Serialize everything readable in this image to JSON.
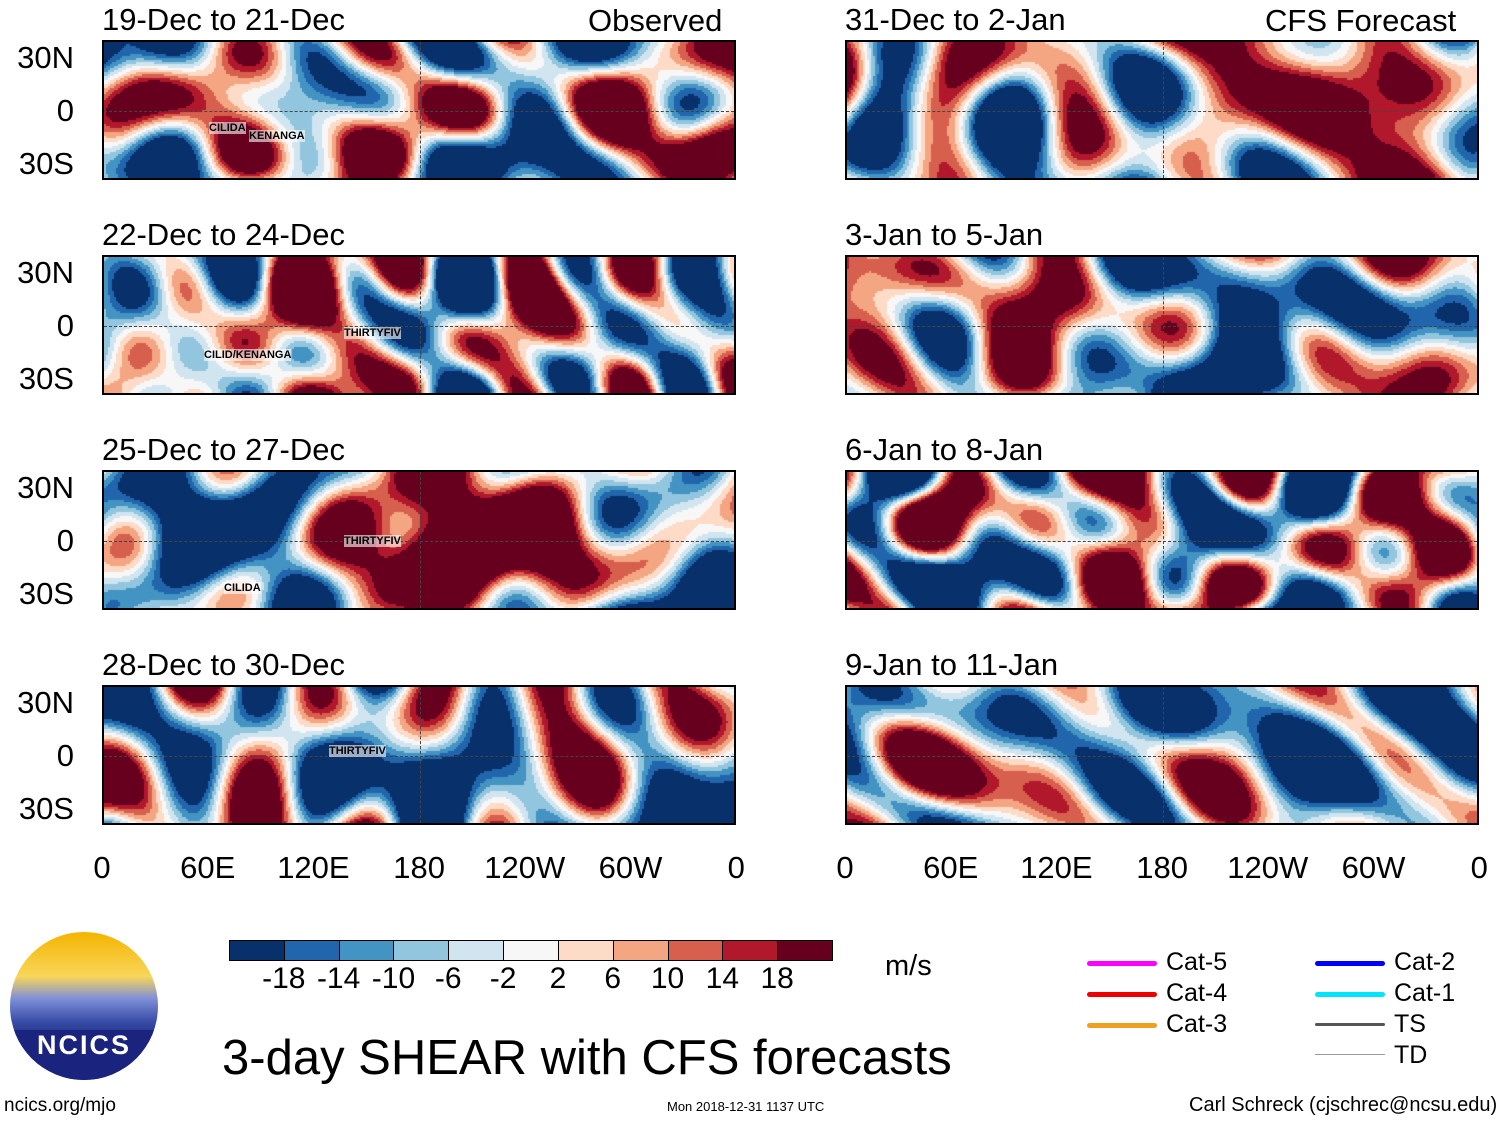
{
  "left_header": "Observed",
  "right_header": "CFS Forecast",
  "observed_panels": [
    {
      "title": "19-Dec to 21-Dec",
      "storms": [
        "CILIDA",
        "KENANGA"
      ]
    },
    {
      "title": "22-Dec to 24-Dec",
      "storms": [
        "THIRTYFIV",
        "CILID/KENANGA"
      ]
    },
    {
      "title": "25-Dec to 27-Dec",
      "storms": [
        "THIRTYFIV",
        "CILIDA"
      ]
    },
    {
      "title": "28-Dec to 30-Dec",
      "storms": [
        "THIRTYFIV"
      ]
    }
  ],
  "forecast_panels": [
    {
      "title": "31-Dec to 2-Jan"
    },
    {
      "title": "3-Jan to 5-Jan"
    },
    {
      "title": "6-Jan to 8-Jan"
    },
    {
      "title": "9-Jan to 11-Jan"
    }
  ],
  "lat_labels": [
    "30N",
    "0",
    "30S"
  ],
  "lon_labels": [
    "0",
    "60E",
    "120E",
    "180",
    "120W",
    "60W",
    "0"
  ],
  "colorbar": {
    "labels": [
      "-18",
      "-14",
      "-10",
      "-6",
      "-2",
      "2",
      "6",
      "10",
      "14",
      "18"
    ],
    "colors": [
      "#08306b",
      "#2166ac",
      "#4393c3",
      "#92c5de",
      "#d1e5f0",
      "#f7f7f7",
      "#fddbc7",
      "#f4a582",
      "#d6604d",
      "#b2182b",
      "#67001f"
    ],
    "units": "m/s"
  },
  "legend": [
    {
      "label": "Cat-5",
      "color": "#ff00ff"
    },
    {
      "label": "Cat-4",
      "color": "#ee0000"
    },
    {
      "label": "Cat-3",
      "color": "#f0a020"
    },
    {
      "label": "Cat-2",
      "color": "#0000ff"
    },
    {
      "label": "Cat-1",
      "color": "#00e5ff"
    },
    {
      "label": "TS",
      "color": "#555555"
    },
    {
      "label": "TD",
      "color": "#999999"
    }
  ],
  "logo_text": "NCICS",
  "title": "3-day SHEAR with CFS forecasts",
  "url": "ncics.org/mjo",
  "timestamp": "Mon 2018-12-31 1137 UTC",
  "credit": "Carl Schreck (cjschrec@ncsu.edu)"
}
